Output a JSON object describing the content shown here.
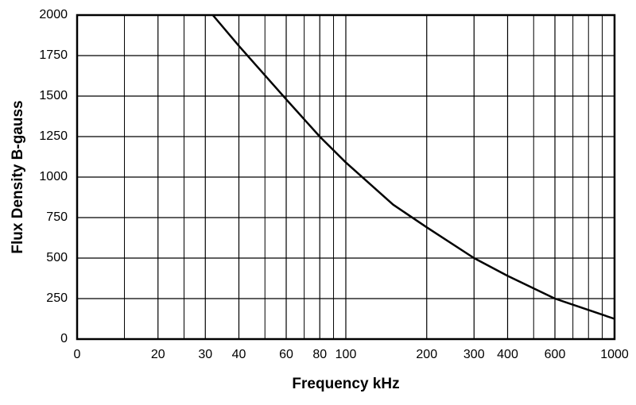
{
  "chart_data": {
    "type": "line",
    "x_label": "Frequency kHz",
    "y_label": "Flux Density B-gauss",
    "x": [
      32,
      40,
      60,
      80,
      100,
      150,
      200,
      300,
      400,
      600,
      1000
    ],
    "series": [
      {
        "color": "#000000",
        "values": [
          2000,
          1810,
          1480,
          1250,
          1090,
          830,
          690,
          500,
          390,
          250,
          125
        ]
      }
    ],
    "xscale": "log",
    "xlim": [
      10,
      1000
    ],
    "xticks": [
      {
        "value": 10,
        "label": "0"
      },
      20,
      30,
      40,
      60,
      80,
      100,
      200,
      300,
      400,
      600,
      1000
    ],
    "x_minor_grid": [
      15,
      25,
      50,
      70,
      90,
      500,
      700,
      800,
      900
    ],
    "ylim": [
      0,
      2000
    ],
    "yticks": [
      0,
      250,
      500,
      750,
      1000,
      1250,
      1500,
      1750,
      2000
    ],
    "grid": true
  }
}
